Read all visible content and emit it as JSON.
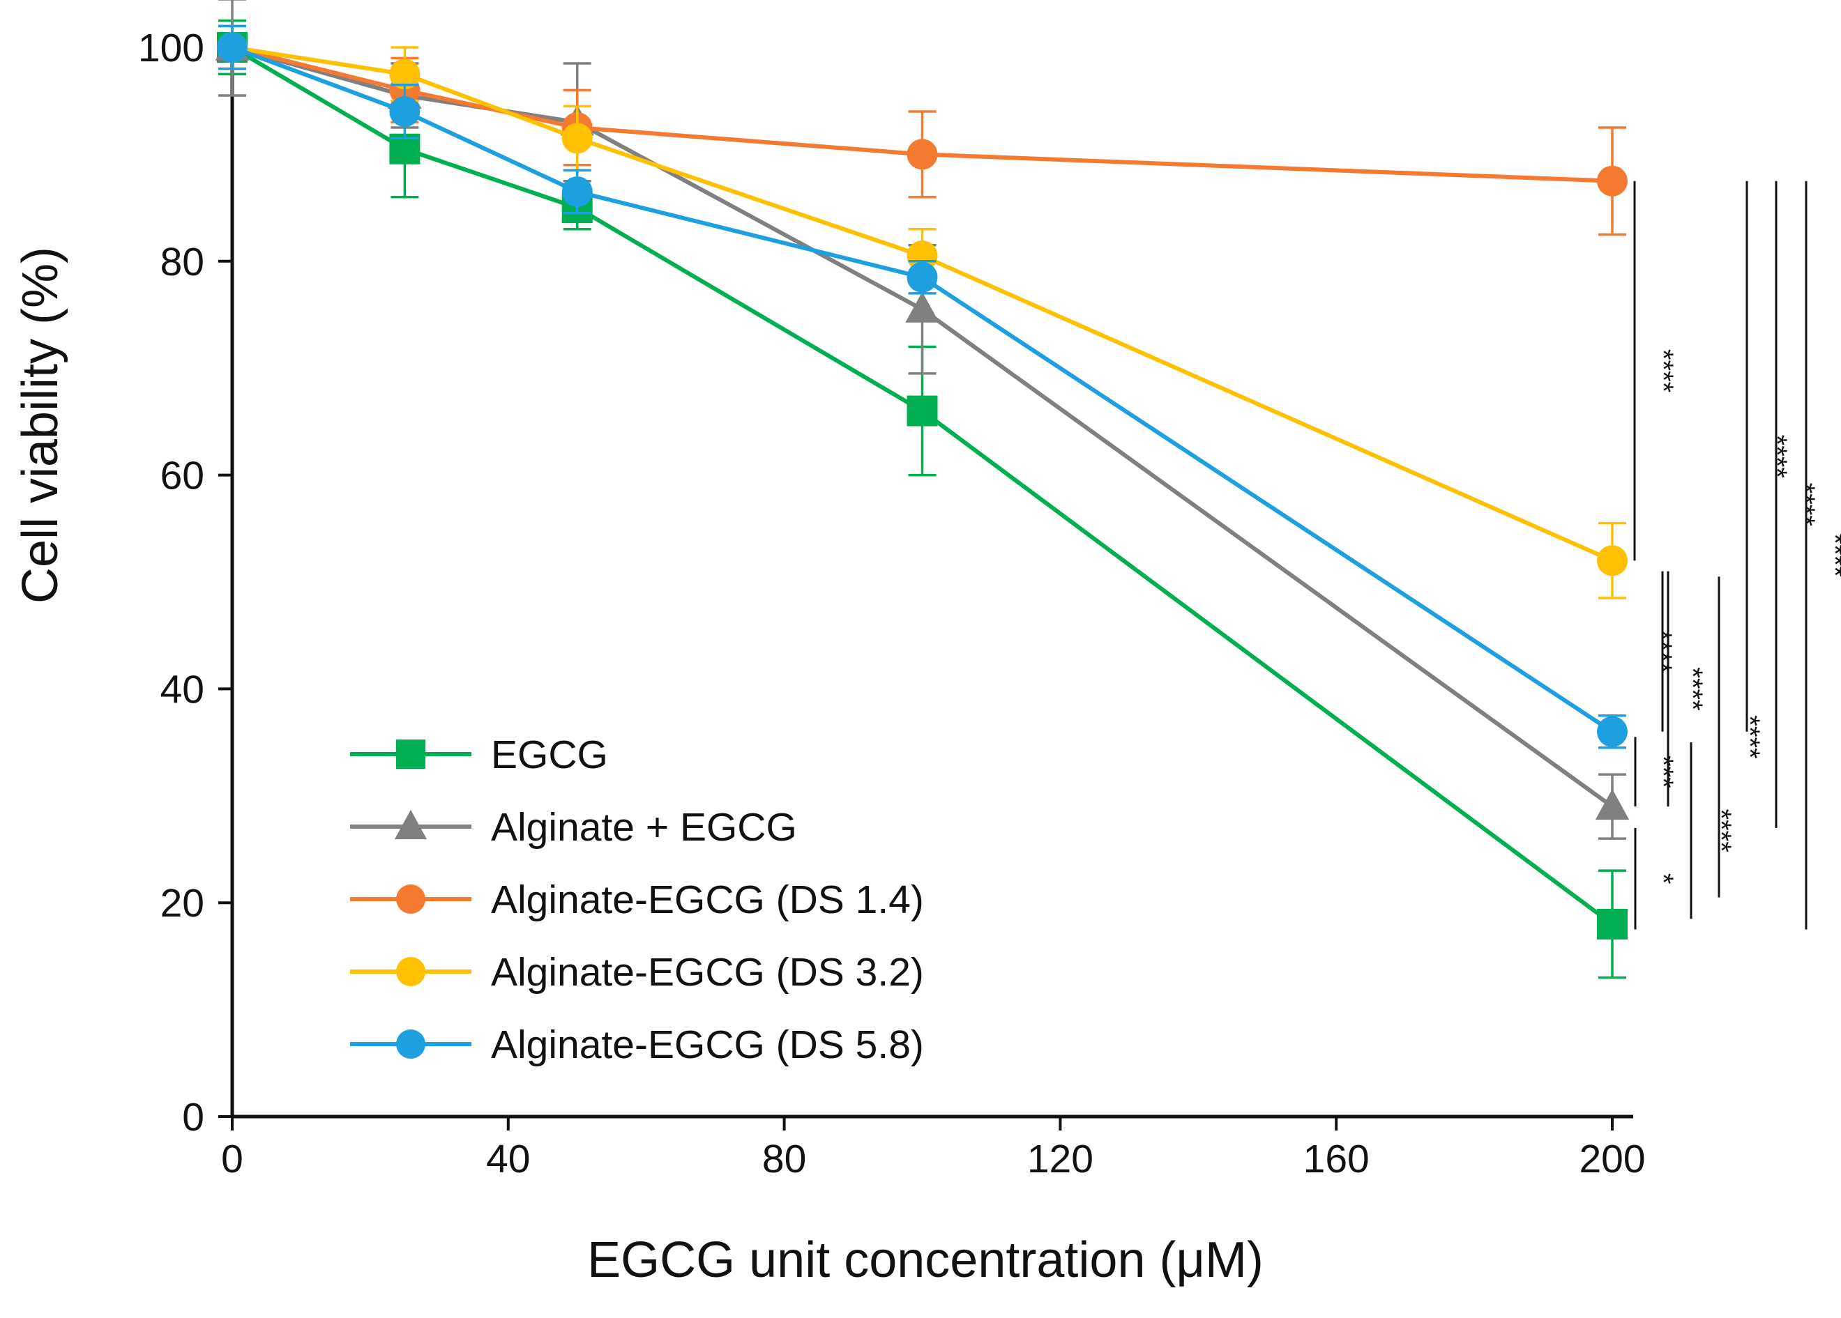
{
  "chart_data": {
    "type": "line",
    "title": "",
    "xlabel": "EGCG unit concentration (μM)",
    "ylabel": "Cell viability (%)",
    "xlim": [
      0,
      200
    ],
    "ylim": [
      0,
      100
    ],
    "x_ticks": [
      "0",
      "40",
      "80",
      "120",
      "160",
      "200"
    ],
    "y_ticks": [
      "0",
      "20",
      "40",
      "60",
      "80",
      "100"
    ],
    "x": [
      0,
      25,
      50,
      100,
      200
    ],
    "legend_position": "lower-left",
    "series": [
      {
        "name": "EGCG",
        "color": "#00B050",
        "marker": "square",
        "values": [
          100,
          90.5,
          85.0,
          66.0,
          18.0
        ],
        "errors": [
          2.5,
          4.5,
          2.0,
          6.0,
          5.0
        ]
      },
      {
        "name": "Alginate + EGCG",
        "color": "#808080",
        "marker": "triangle",
        "values": [
          100,
          95.5,
          93.0,
          75.5,
          29.0
        ],
        "errors": [
          4.5,
          3.0,
          5.5,
          6.0,
          3.0
        ]
      },
      {
        "name": "Alginate-EGCG  (DS 1.4)",
        "color": "#F47A30",
        "marker": "circle",
        "values": [
          100,
          96.0,
          92.5,
          90.0,
          87.5
        ],
        "errors": [
          2.0,
          3.0,
          3.5,
          4.0,
          5.0
        ]
      },
      {
        "name": "Alginate-EGCG  (DS 3.2)",
        "color": "#FFC000",
        "marker": "circle",
        "values": [
          100,
          97.5,
          91.5,
          80.5,
          52.0
        ],
        "errors": [
          2.0,
          2.5,
          3.0,
          2.5,
          3.5
        ]
      },
      {
        "name": "Alginate-EGCG  (DS 5.8)",
        "color": "#1E9FE0",
        "marker": "circle",
        "values": [
          100,
          94.0,
          86.5,
          78.5,
          36.0
        ],
        "errors": [
          2.0,
          2.5,
          2.0,
          1.5,
          1.5
        ]
      }
    ],
    "significance": [
      {
        "label": "****",
        "from": 87.5,
        "to": 52.0
      },
      {
        "label": "****",
        "from": 51.0,
        "to": 36.0
      },
      {
        "label": "****",
        "from": 51.0,
        "to": 29.0
      },
      {
        "label": "***",
        "from": 35.5,
        "to": 29.0
      },
      {
        "label": "*",
        "from": 27.0,
        "to": 17.5
      },
      {
        "label": "****",
        "from": 35.0,
        "to": 18.5
      },
      {
        "label": "****",
        "from": 50.5,
        "to": 20.5
      },
      {
        "label": "****",
        "from": 87.5,
        "to": 36.0
      },
      {
        "label": "****",
        "from": 87.5,
        "to": 27.0
      },
      {
        "label": "****",
        "from": 87.5,
        "to": 17.5
      }
    ]
  }
}
